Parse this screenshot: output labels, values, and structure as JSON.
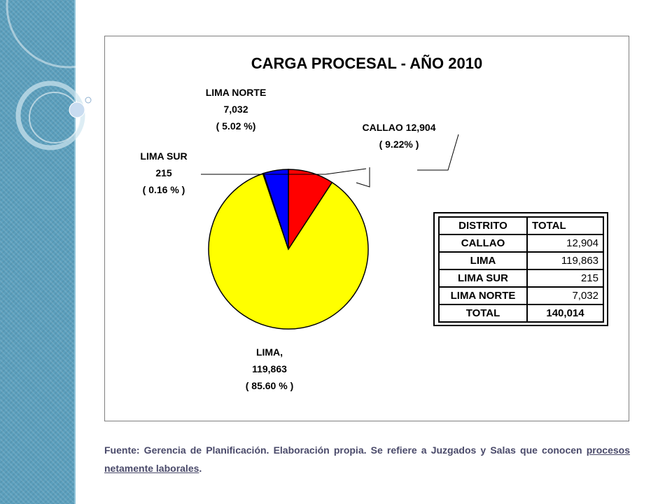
{
  "chart_data": {
    "type": "pie",
    "title": "CARGA PROCESAL - AÑO 2010",
    "slices": [
      {
        "name": "CALLAO",
        "value": 12904,
        "percent_label": "( 9.22% )",
        "value_label": "12,904",
        "color": "#ff0000"
      },
      {
        "name": "LIMA",
        "value": 119863,
        "percent_label": "( 85.60 % )",
        "value_label": "119,863",
        "color": "#ffff00"
      },
      {
        "name": "LIMA SUR",
        "value": 215,
        "percent_label": "( 0.16 % )",
        "value_label": "215",
        "color": "#000000"
      },
      {
        "name": "LIMA NORTE",
        "value": 7032,
        "percent_label": "( 5.02 %)",
        "value_label": "7,032",
        "color": "#0000ff"
      }
    ],
    "labels": {
      "callao": {
        "line1": "CALLAO  12,904",
        "line2": "( 9.22% )"
      },
      "lima": {
        "line1": "LIMA,",
        "line2": "119,863",
        "line3": "( 85.60 % )"
      },
      "lima_sur": {
        "line1": "LIMA SUR",
        "line2": "215",
        "line3": "( 0.16 % )"
      },
      "lima_norte": {
        "line1": "LIMA NORTE",
        "line2": "7,032",
        "line3": "( 5.02 %)"
      }
    }
  },
  "table": {
    "headers": [
      "DISTRITO",
      "TOTAL"
    ],
    "rows": [
      [
        "CALLAO",
        "12,904"
      ],
      [
        "LIMA",
        "119,863"
      ],
      [
        "LIMA SUR",
        "215"
      ],
      [
        "LIMA NORTE",
        "7,032"
      ]
    ],
    "total": [
      "TOTAL",
      "140,014"
    ]
  },
  "source_note": {
    "text": "Fuente: Gerencia de Planificación. Elaboración propia. Se refiere a Juzgados y Salas que conocen ",
    "underlined": "procesos netamente laborales",
    "end": "."
  },
  "colors": {
    "strip": "#5b9fbd",
    "edge": "#000000"
  }
}
